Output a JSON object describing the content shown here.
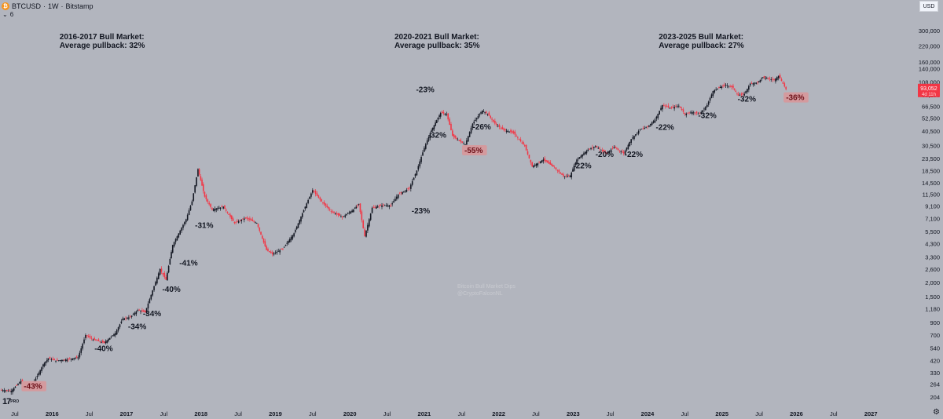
{
  "header": {
    "symbol": "BTCUSD",
    "interval": "1W",
    "exchange": "Bitstamp",
    "separator": "·",
    "sub_indicator": "6",
    "currency": "USD"
  },
  "colors": {
    "background": "#b2b5be",
    "up": "#131722",
    "down": "#f23645",
    "pill_bg": "#d49a9e",
    "price_tag": "#f23645",
    "axis_text": "#131722"
  },
  "icons": [
    "bitcoin-icon",
    "chevron-down-icon",
    "tradingview-logo",
    "gear-icon"
  ],
  "branding": {
    "logo": "17",
    "logo_sub": "PRO"
  },
  "chart_data": {
    "type": "line",
    "yscale": "log",
    "ylim": [
      180,
      550000
    ],
    "xlim": [
      2015.3,
      2027.6
    ],
    "y_ticks": [
      300000,
      220000,
      160000,
      140000,
      108000,
      83200,
      66500,
      52500,
      40500,
      30500,
      23500,
      18500,
      14500,
      11500,
      9100,
      7100,
      5500,
      4300,
      3300,
      2600,
      2000,
      1500,
      1180,
      900,
      700,
      540,
      420,
      330,
      264,
      204
    ],
    "x_ticks": [
      "Jul",
      "2016",
      "Jul",
      "2017",
      "Jul",
      "2018",
      "Jul",
      "2019",
      "Jul",
      "2020",
      "Jul",
      "2021",
      "Jul",
      "2022",
      "Jul",
      "2023",
      "Jul",
      "2024",
      "Jul",
      "2025",
      "Jul",
      "2026",
      "Jul",
      "2027"
    ],
    "x_tick_pos": [
      2015.5,
      2016.0,
      2016.5,
      2017.0,
      2017.5,
      2018.0,
      2018.5,
      2019.0,
      2019.5,
      2020.0,
      2020.5,
      2021.0,
      2021.5,
      2022.0,
      2022.5,
      2023.0,
      2023.5,
      2024.0,
      2024.5,
      2025.0,
      2025.5,
      2026.0,
      2026.5,
      2027.0
    ],
    "last_price": {
      "value": "93,052",
      "countdown": "4d 11h"
    },
    "series": [
      {
        "values": [
          [
            2015.3,
            235
          ],
          [
            2015.45,
            230
          ],
          [
            2015.58,
            280
          ],
          [
            2015.7,
            240
          ],
          [
            2015.8,
            310
          ],
          [
            2015.88,
            390
          ],
          [
            2015.95,
            440
          ],
          [
            2016.05,
            420
          ],
          [
            2016.2,
            430
          ],
          [
            2016.35,
            450
          ],
          [
            2016.45,
            700
          ],
          [
            2016.55,
            640
          ],
          [
            2016.7,
            600
          ],
          [
            2016.85,
            730
          ],
          [
            2016.95,
            970
          ],
          [
            2017.05,
            1000
          ],
          [
            2017.15,
            1150
          ],
          [
            2017.25,
            1100
          ],
          [
            2017.35,
            1700
          ],
          [
            2017.45,
            2600
          ],
          [
            2017.53,
            2100
          ],
          [
            2017.62,
            4200
          ],
          [
            2017.72,
            5600
          ],
          [
            2017.8,
            7000
          ],
          [
            2017.88,
            10000
          ],
          [
            2017.96,
            19000
          ],
          [
            2018.05,
            11000
          ],
          [
            2018.15,
            8500
          ],
          [
            2018.3,
            9000
          ],
          [
            2018.45,
            6500
          ],
          [
            2018.6,
            7200
          ],
          [
            2018.75,
            6500
          ],
          [
            2018.88,
            3800
          ],
          [
            2018.96,
            3500
          ],
          [
            2019.1,
            3900
          ],
          [
            2019.25,
            5300
          ],
          [
            2019.4,
            9000
          ],
          [
            2019.5,
            12500
          ],
          [
            2019.62,
            10000
          ],
          [
            2019.75,
            8200
          ],
          [
            2019.9,
            7300
          ],
          [
            2020.05,
            8500
          ],
          [
            2020.12,
            9500
          ],
          [
            2020.2,
            5000
          ],
          [
            2020.3,
            8800
          ],
          [
            2020.45,
            9300
          ],
          [
            2020.55,
            9200
          ],
          [
            2020.65,
            11500
          ],
          [
            2020.8,
            13000
          ],
          [
            2020.9,
            18500
          ],
          [
            2021.0,
            29000
          ],
          [
            2021.08,
            39000
          ],
          [
            2021.15,
            48000
          ],
          [
            2021.22,
            58000
          ],
          [
            2021.3,
            57000
          ],
          [
            2021.38,
            37000
          ],
          [
            2021.45,
            34000
          ],
          [
            2021.55,
            31000
          ],
          [
            2021.65,
            47000
          ],
          [
            2021.78,
            61000
          ],
          [
            2021.85,
            57000
          ],
          [
            2021.95,
            47000
          ],
          [
            2022.05,
            42000
          ],
          [
            2022.2,
            39000
          ],
          [
            2022.35,
            30000
          ],
          [
            2022.45,
            20000
          ],
          [
            2022.6,
            23000
          ],
          [
            2022.75,
            19500
          ],
          [
            2022.87,
            16500
          ],
          [
            2022.96,
            16600
          ],
          [
            2023.05,
            23000
          ],
          [
            2023.2,
            28000
          ],
          [
            2023.3,
            30000
          ],
          [
            2023.45,
            26000
          ],
          [
            2023.55,
            29500
          ],
          [
            2023.68,
            26000
          ],
          [
            2023.78,
            34500
          ],
          [
            2023.9,
            42000
          ],
          [
            2024.0,
            44000
          ],
          [
            2024.1,
            51000
          ],
          [
            2024.2,
            68000
          ],
          [
            2024.3,
            64000
          ],
          [
            2024.42,
            67000
          ],
          [
            2024.5,
            57000
          ],
          [
            2024.6,
            59000
          ],
          [
            2024.7,
            57000
          ],
          [
            2024.8,
            68000
          ],
          [
            2024.88,
            90000
          ],
          [
            2024.96,
            96000
          ],
          [
            2025.05,
            102000
          ],
          [
            2025.15,
            96000
          ],
          [
            2025.22,
            82000
          ],
          [
            2025.3,
            85000
          ],
          [
            2025.38,
            104000
          ],
          [
            2025.48,
            107000
          ],
          [
            2025.55,
            118000
          ],
          [
            2025.62,
            115000
          ],
          [
            2025.7,
            112000
          ],
          [
            2025.76,
            122000
          ],
          [
            2025.8,
            110000
          ],
          [
            2025.86,
            93052
          ]
        ]
      }
    ],
    "annotations": [
      {
        "text": "2016-2017 Bull Market:\nAverage pullback: 32%",
        "x": 2016.1,
        "y": 252000,
        "kind": "title"
      },
      {
        "text": "2020-2021 Bull Market:\nAverage pullback: 35%",
        "x": 2020.6,
        "y": 252000,
        "kind": "title"
      },
      {
        "text": "2023-2025 Bull Market:\nAverage pullback: 27%",
        "x": 2024.15,
        "y": 252000,
        "kind": "title"
      },
      {
        "text": "-43%",
        "x": 2015.62,
        "y": 240,
        "kind": "pill"
      },
      {
        "text": "-40%",
        "x": 2016.57,
        "y": 510,
        "kind": "plain"
      },
      {
        "text": "-34%",
        "x": 2017.02,
        "y": 790,
        "kind": "plain"
      },
      {
        "text": "-34%",
        "x": 2017.22,
        "y": 1020,
        "kind": "plain"
      },
      {
        "text": "-40%",
        "x": 2017.48,
        "y": 1650,
        "kind": "plain"
      },
      {
        "text": "-41%",
        "x": 2017.71,
        "y": 2780,
        "kind": "plain"
      },
      {
        "text": "-31%",
        "x": 2017.92,
        "y": 5900,
        "kind": "plain"
      },
      {
        "text": "-23%",
        "x": 2020.83,
        "y": 7900,
        "kind": "plain"
      },
      {
        "text": "-32%",
        "x": 2021.05,
        "y": 35500,
        "kind": "plain"
      },
      {
        "text": "-23%",
        "x": 2020.89,
        "y": 88000,
        "kind": "plain"
      },
      {
        "text": "-55%",
        "x": 2021.54,
        "y": 26200,
        "kind": "pill"
      },
      {
        "text": "-26%",
        "x": 2021.65,
        "y": 42000,
        "kind": "plain"
      },
      {
        "text": "-22%",
        "x": 2023.0,
        "y": 19300,
        "kind": "plain"
      },
      {
        "text": "-20%",
        "x": 2023.3,
        "y": 24300,
        "kind": "plain"
      },
      {
        "text": "-22%",
        "x": 2023.69,
        "y": 24300,
        "kind": "plain"
      },
      {
        "text": "-22%",
        "x": 2024.11,
        "y": 41600,
        "kind": "plain"
      },
      {
        "text": "-32%",
        "x": 2024.68,
        "y": 52600,
        "kind": "plain"
      },
      {
        "text": "-32%",
        "x": 2025.21,
        "y": 73000,
        "kind": "plain"
      },
      {
        "text": "-36%",
        "x": 2025.86,
        "y": 75000,
        "kind": "pill"
      }
    ],
    "watermark": "Bitcoin Bull Market Dips\n@CryptoFalconNL"
  }
}
